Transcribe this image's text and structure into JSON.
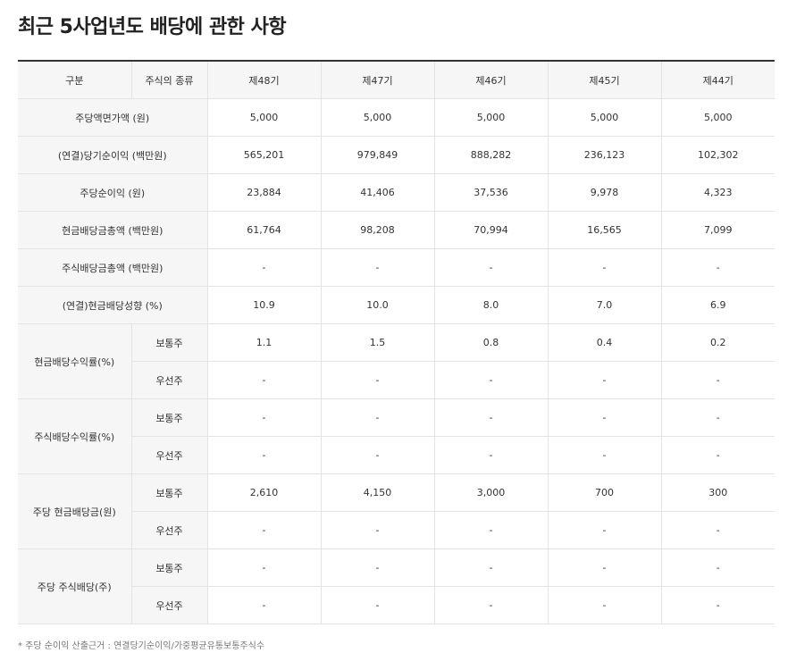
{
  "title": "최근 5사업년도 배당에 관한 사항",
  "header": {
    "col_gubun": "구분",
    "col_type": "주식의 종류",
    "periods": [
      "제48기",
      "제47기",
      "제46기",
      "제45기",
      "제44기"
    ]
  },
  "rows": {
    "par_value": {
      "label": "주당액면가액 (원)",
      "values": [
        "5,000",
        "5,000",
        "5,000",
        "5,000",
        "5,000"
      ]
    },
    "net_income": {
      "label": "(연결)당기순이익 (백만원)",
      "values": [
        "565,201",
        "979,849",
        "888,282",
        "236,123",
        "102,302"
      ]
    },
    "eps": {
      "label": "주당순이익 (원)",
      "values": [
        "23,884",
        "41,406",
        "37,536",
        "9,978",
        "4,323"
      ]
    },
    "cash_total": {
      "label": "현금배당금총액 (백만원)",
      "values": [
        "61,764",
        "98,208",
        "70,994",
        "16,565",
        "7,099"
      ]
    },
    "stock_total": {
      "label": "주식배당금총액 (백만원)",
      "values": [
        "-",
        "-",
        "-",
        "-",
        "-"
      ]
    },
    "payout": {
      "label": "(연결)현금배당성향 (%)",
      "values": [
        "10.9",
        "10.0",
        "8.0",
        "7.0",
        "6.9"
      ]
    }
  },
  "groups": {
    "cash_yield": {
      "label": "현금배당수익률(%)",
      "common": {
        "label": "보통주",
        "values": [
          "1.1",
          "1.5",
          "0.8",
          "0.4",
          "0.2"
        ]
      },
      "preferred": {
        "label": "우선주",
        "values": [
          "-",
          "-",
          "-",
          "-",
          "-"
        ]
      }
    },
    "stock_yield": {
      "label": "주식배당수익률(%)",
      "common": {
        "label": "보통주",
        "values": [
          "-",
          "-",
          "-",
          "-",
          "-"
        ]
      },
      "preferred": {
        "label": "우선주",
        "values": [
          "-",
          "-",
          "-",
          "-",
          "-"
        ]
      }
    },
    "cash_dps": {
      "label": "주당 현금배당금(원)",
      "common": {
        "label": "보통주",
        "values": [
          "2,610",
          "4,150",
          "3,000",
          "700",
          "300"
        ]
      },
      "preferred": {
        "label": "우선주",
        "values": [
          "-",
          "-",
          "-",
          "-",
          "-"
        ]
      }
    },
    "stock_dps": {
      "label": "주당 주식배당(주)",
      "common": {
        "label": "보통주",
        "values": [
          "-",
          "-",
          "-",
          "-",
          "-"
        ]
      },
      "preferred": {
        "label": "우선주",
        "values": [
          "-",
          "-",
          "-",
          "-",
          "-"
        ]
      }
    }
  },
  "footnote": "* 주당 순이익 산출근거 : 연결당기순이익/가중평균유통보통주식수"
}
